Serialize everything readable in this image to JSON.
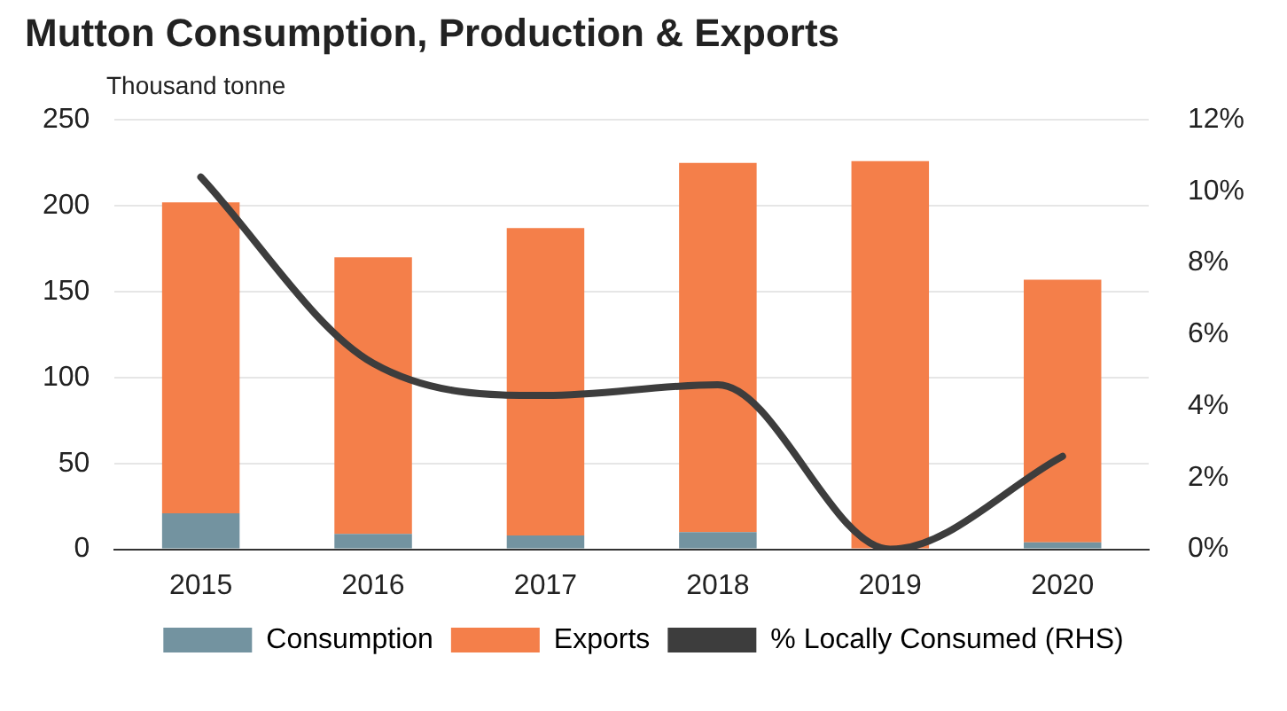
{
  "chart_data": {
    "type": "bar",
    "title": "Mutton Consumption, Production & Exports",
    "ylabel": "Thousand tonne",
    "categories": [
      "2015",
      "2016",
      "2017",
      "2018",
      "2019",
      "2020"
    ],
    "stacked": true,
    "series": [
      {
        "name": "Consumption",
        "color": "#7393a0",
        "values": [
          21,
          9,
          8,
          10,
          0,
          4
        ]
      },
      {
        "name": "Exports",
        "color": "#f47f4a",
        "values": [
          181,
          161,
          179,
          215,
          226,
          153
        ]
      },
      {
        "name": "% Locally Consumed (RHS)",
        "type": "line",
        "axis": "y2",
        "color": "#3d3d3d",
        "values": [
          10.4,
          5.2,
          4.3,
          4.6,
          0,
          2.6
        ]
      }
    ],
    "ylim": [
      0,
      250
    ],
    "yticks": [
      0,
      50,
      100,
      150,
      200,
      250
    ],
    "y2lim": [
      0,
      12
    ],
    "y2ticks": [
      {
        "value": 0,
        "label": "0%"
      },
      {
        "value": 2,
        "label": "2%"
      },
      {
        "value": 4,
        "label": "4%"
      },
      {
        "value": 6,
        "label": "6%"
      },
      {
        "value": 8,
        "label": "8%"
      },
      {
        "value": 10,
        "label": "10%"
      },
      {
        "value": 12,
        "label": "12%"
      }
    ],
    "grid": "y",
    "legend": "bottom"
  }
}
